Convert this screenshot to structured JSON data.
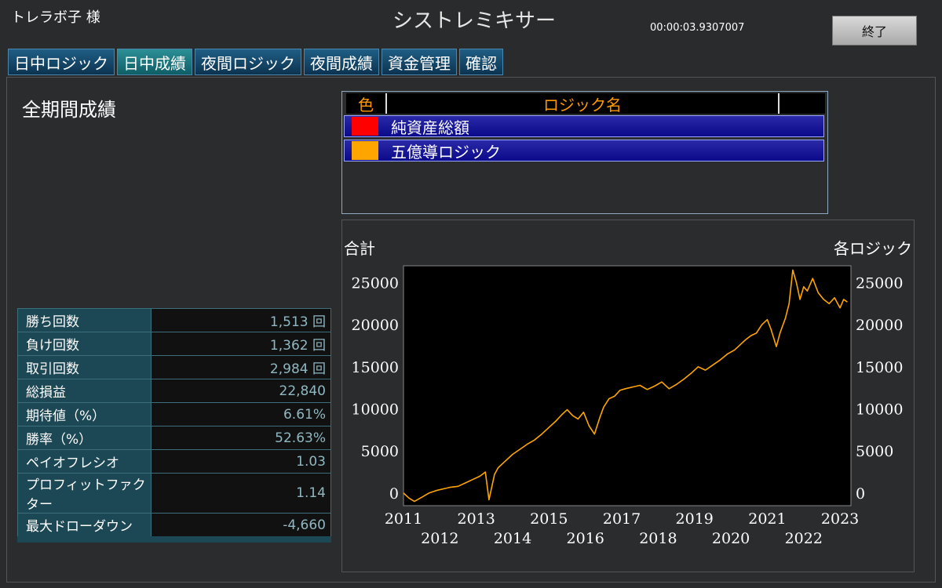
{
  "header": {
    "user": "トレラボ子 様",
    "app_title": "シストレミキサー",
    "timer": "00:00:03.9307007",
    "exit_label": "終了"
  },
  "tabs": [
    {
      "label": "日中ロジック",
      "active": false
    },
    {
      "label": "日中成績",
      "active": true
    },
    {
      "label": "夜間ロジック",
      "active": false
    },
    {
      "label": "夜間成績",
      "active": false
    },
    {
      "label": "資金管理",
      "active": false
    },
    {
      "label": "確認",
      "active": false
    }
  ],
  "section_title": "全期間成績",
  "logic_table": {
    "header_color": "色",
    "header_name": "ロジック名",
    "rows": [
      {
        "color": "#ff0000",
        "name": "純資産総額"
      },
      {
        "color": "#ffa500",
        "name": "五億導ロジック"
      }
    ]
  },
  "chart_data": {
    "type": "line",
    "title": "",
    "left_axis_title": "合計",
    "right_axis_title": "各ロジック",
    "xlim": [
      2011,
      2023.3
    ],
    "ylim": [
      -1500,
      27000
    ],
    "yticks": [
      0,
      5000,
      10000,
      15000,
      20000,
      25000
    ],
    "xticks_upper": [
      "2011",
      "2013",
      "2015",
      "2017",
      "2019",
      "2021",
      "2023"
    ],
    "xticks_lower": [
      "2012",
      "2014",
      "2016",
      "2018",
      "2020",
      "2022"
    ],
    "series": [
      {
        "name": "五億導ロジック",
        "color": "#ffa500",
        "x": [
          2011.0,
          2011.15,
          2011.3,
          2011.5,
          2011.7,
          2011.9,
          2012.1,
          2012.3,
          2012.5,
          2012.7,
          2012.9,
          2013.1,
          2013.25,
          2013.35,
          2013.5,
          2013.6,
          2013.8,
          2014.0,
          2014.2,
          2014.4,
          2014.6,
          2014.8,
          2015.0,
          2015.2,
          2015.35,
          2015.5,
          2015.65,
          2015.8,
          2015.95,
          2016.1,
          2016.25,
          2016.4,
          2016.5,
          2016.65,
          2016.8,
          2016.95,
          2017.1,
          2017.3,
          2017.5,
          2017.7,
          2017.9,
          2018.1,
          2018.3,
          2018.5,
          2018.7,
          2018.9,
          2019.1,
          2019.3,
          2019.5,
          2019.7,
          2019.9,
          2020.1,
          2020.25,
          2020.4,
          2020.55,
          2020.7,
          2020.85,
          2021.0,
          2021.1,
          2021.25,
          2021.35,
          2021.5,
          2021.6,
          2021.7,
          2021.8,
          2021.9,
          2022.0,
          2022.1,
          2022.25,
          2022.4,
          2022.55,
          2022.7,
          2022.85,
          2023.0,
          2023.1,
          2023.2
        ],
        "values": [
          0,
          -600,
          -1000,
          -500,
          0,
          300,
          500,
          700,
          800,
          1200,
          1600,
          2000,
          2500,
          -800,
          2200,
          3000,
          3800,
          4600,
          5200,
          5800,
          6300,
          7000,
          7800,
          8600,
          9300,
          9900,
          9200,
          8800,
          9600,
          8000,
          7000,
          9000,
          10200,
          11200,
          11500,
          12200,
          12400,
          12600,
          12800,
          12300,
          12700,
          13200,
          12400,
          12900,
          13500,
          14200,
          15000,
          14600,
          15200,
          15800,
          16500,
          17000,
          17600,
          18200,
          18700,
          19000,
          20000,
          20600,
          19500,
          17400,
          19000,
          20800,
          22500,
          26500,
          25000,
          23000,
          24500,
          24000,
          25500,
          23800,
          23000,
          22500,
          23200,
          22000,
          23000,
          22700
        ]
      }
    ]
  },
  "stats": [
    {
      "label": "勝ち回数",
      "value": "1,513 回"
    },
    {
      "label": "負け回数",
      "value": "1,362 回"
    },
    {
      "label": "取引回数",
      "value": "2,984 回"
    },
    {
      "label": "総損益",
      "value": "22,840"
    },
    {
      "label": "期待値（%）",
      "value": "6.61%"
    },
    {
      "label": "勝率（%）",
      "value": "52.63%"
    },
    {
      "label": "ペイオフレシオ",
      "value": "1.03"
    },
    {
      "label": "プロフィットファクター",
      "value": "1.14"
    },
    {
      "label": "最大ドローダウン",
      "value": "-4,660"
    }
  ]
}
